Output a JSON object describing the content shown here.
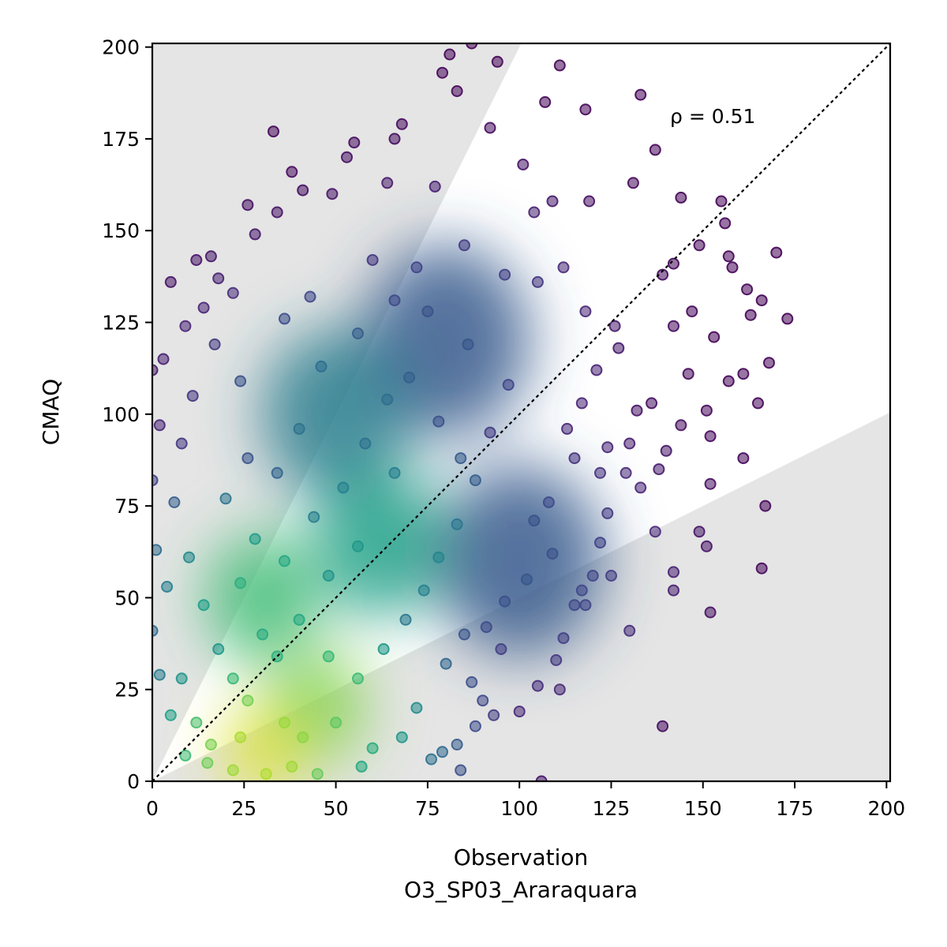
{
  "chart_data": {
    "type": "scatter",
    "title": "",
    "xlabel": "Observation\nO3_SP03_Araraquara",
    "xlabel_lines": [
      "Observation",
      "O3_SP03_Araraquara"
    ],
    "ylabel": "CMAQ",
    "xlim": [
      0,
      201
    ],
    "ylim": [
      0,
      201
    ],
    "x_ticks": [
      0,
      25,
      50,
      75,
      100,
      125,
      150,
      175,
      200
    ],
    "y_ticks": [
      0,
      25,
      50,
      75,
      100,
      125,
      150,
      175,
      200
    ],
    "x_tick_labels": [
      "0",
      "25",
      "50",
      "75",
      "100",
      "125",
      "150",
      "175",
      "200"
    ],
    "y_tick_labels": [
      "0",
      "25",
      "50",
      "75",
      "100",
      "125",
      "150",
      "175",
      "200"
    ],
    "annotation": "ρ = 0.51",
    "reference_line": {
      "type": "1:1",
      "style": "dotted",
      "color": "#000000"
    },
    "factor_of_two_bands": {
      "upper_slope": 2,
      "lower_slope": 0.5,
      "fill_color": "#e5e5e5"
    },
    "colormap": "viridis (point density)",
    "grid": false,
    "legend": "none",
    "density_clusters": [
      {
        "x": 30,
        "y": 8,
        "density": 1.0
      },
      {
        "x": 45,
        "y": 20,
        "density": 0.85
      },
      {
        "x": 30,
        "y": 50,
        "density": 0.72
      },
      {
        "x": 62,
        "y": 65,
        "density": 0.6
      },
      {
        "x": 50,
        "y": 100,
        "density": 0.45
      },
      {
        "x": 80,
        "y": 120,
        "density": 0.3
      },
      {
        "x": 100,
        "y": 60,
        "density": 0.3
      }
    ],
    "sample_points": [
      [
        87,
        201
      ],
      [
        81,
        198
      ],
      [
        94,
        196
      ],
      [
        111,
        195
      ],
      [
        79,
        193
      ],
      [
        83,
        188
      ],
      [
        133,
        187
      ],
      [
        107,
        185
      ],
      [
        118,
        183
      ],
      [
        33,
        177
      ],
      [
        137,
        172
      ],
      [
        55,
        174
      ],
      [
        68,
        179
      ],
      [
        92,
        178
      ],
      [
        101,
        168
      ],
      [
        38,
        166
      ],
      [
        53,
        170
      ],
      [
        66,
        175
      ],
      [
        131,
        163
      ],
      [
        144,
        159
      ],
      [
        155,
        158
      ],
      [
        26,
        157
      ],
      [
        34,
        155
      ],
      [
        41,
        161
      ],
      [
        49,
        160
      ],
      [
        64,
        163
      ],
      [
        77,
        162
      ],
      [
        119,
        158
      ],
      [
        109,
        158
      ],
      [
        104,
        155
      ],
      [
        156,
        152
      ],
      [
        28,
        149
      ],
      [
        12,
        142
      ],
      [
        16,
        143
      ],
      [
        5,
        136
      ],
      [
        157,
        143
      ],
      [
        170,
        144
      ],
      [
        173,
        126
      ],
      [
        163,
        127
      ],
      [
        149,
        146
      ],
      [
        142,
        141
      ],
      [
        139,
        138
      ],
      [
        158,
        140
      ],
      [
        162,
        134
      ],
      [
        166,
        131
      ],
      [
        147,
        128
      ],
      [
        142,
        124
      ],
      [
        153,
        121
      ],
      [
        157,
        109
      ],
      [
        168,
        114
      ],
      [
        165,
        103
      ],
      [
        161,
        111
      ],
      [
        146,
        111
      ],
      [
        151,
        101
      ],
      [
        136,
        103
      ],
      [
        132,
        101
      ],
      [
        144,
        97
      ],
      [
        152,
        94
      ],
      [
        161,
        88
      ],
      [
        140,
        90
      ],
      [
        138,
        85
      ],
      [
        152,
        81
      ],
      [
        133,
        80
      ],
      [
        167,
        75
      ],
      [
        129,
        84
      ],
      [
        124,
        91
      ],
      [
        122,
        84
      ],
      [
        130,
        92
      ],
      [
        124,
        73
      ],
      [
        137,
        68
      ],
      [
        122,
        65
      ],
      [
        125,
        56
      ],
      [
        149,
        68
      ],
      [
        151,
        64
      ],
      [
        142,
        57
      ],
      [
        142,
        52
      ],
      [
        166,
        58
      ],
      [
        152,
        46
      ],
      [
        130,
        41
      ],
      [
        120,
        56
      ],
      [
        115,
        48
      ],
      [
        118,
        48
      ],
      [
        117,
        52
      ],
      [
        110,
        33
      ],
      [
        111,
        25
      ],
      [
        112,
        39
      ],
      [
        105,
        26
      ],
      [
        100,
        19
      ],
      [
        93,
        18
      ],
      [
        88,
        15
      ],
      [
        83,
        10
      ],
      [
        79,
        8
      ],
      [
        76,
        6
      ],
      [
        106,
        0
      ],
      [
        84,
        3
      ],
      [
        139,
        15
      ],
      [
        3,
        115
      ],
      [
        0,
        112
      ],
      [
        2,
        97
      ],
      [
        0,
        82
      ],
      [
        1,
        63
      ],
      [
        4,
        53
      ],
      [
        0,
        41
      ],
      [
        2,
        29
      ],
      [
        5,
        18
      ],
      [
        9,
        124
      ],
      [
        14,
        129
      ],
      [
        17,
        119
      ],
      [
        22,
        133
      ],
      [
        18,
        137
      ],
      [
        24,
        109
      ],
      [
        11,
        105
      ],
      [
        8,
        92
      ],
      [
        6,
        76
      ],
      [
        10,
        61
      ],
      [
        14,
        48
      ],
      [
        18,
        36
      ],
      [
        22,
        28
      ],
      [
        8,
        28
      ],
      [
        12,
        16
      ],
      [
        20,
        77
      ],
      [
        26,
        88
      ],
      [
        36,
        126
      ],
      [
        43,
        132
      ],
      [
        60,
        142
      ],
      [
        72,
        140
      ],
      [
        85,
        146
      ],
      [
        96,
        138
      ],
      [
        105,
        136
      ],
      [
        112,
        140
      ],
      [
        118,
        128
      ],
      [
        126,
        124
      ],
      [
        127,
        118
      ],
      [
        121,
        112
      ],
      [
        117,
        103
      ],
      [
        113,
        96
      ],
      [
        115,
        88
      ],
      [
        108,
        76
      ],
      [
        104,
        71
      ],
      [
        109,
        62
      ],
      [
        102,
        55
      ],
      [
        96,
        49
      ],
      [
        91,
        42
      ],
      [
        95,
        36
      ],
      [
        85,
        40
      ],
      [
        80,
        32
      ],
      [
        87,
        27
      ],
      [
        90,
        22
      ],
      [
        72,
        20
      ],
      [
        68,
        12
      ],
      [
        60,
        9
      ],
      [
        57,
        4
      ],
      [
        45,
        2
      ],
      [
        38,
        4
      ],
      [
        31,
        2
      ],
      [
        22,
        3
      ],
      [
        15,
        5
      ],
      [
        9,
        7
      ],
      [
        41,
        12
      ],
      [
        50,
        16
      ],
      [
        56,
        28
      ],
      [
        63,
        36
      ],
      [
        69,
        44
      ],
      [
        74,
        52
      ],
      [
        78,
        61
      ],
      [
        83,
        70
      ],
      [
        88,
        82
      ],
      [
        92,
        95
      ],
      [
        97,
        108
      ],
      [
        86,
        119
      ],
      [
        75,
        128
      ],
      [
        66,
        131
      ],
      [
        56,
        122
      ],
      [
        46,
        113
      ],
      [
        40,
        96
      ],
      [
        34,
        84
      ],
      [
        28,
        66
      ],
      [
        24,
        54
      ],
      [
        36,
        60
      ],
      [
        44,
        72
      ],
      [
        52,
        80
      ],
      [
        58,
        92
      ],
      [
        64,
        104
      ],
      [
        70,
        110
      ],
      [
        78,
        98
      ],
      [
        84,
        88
      ],
      [
        66,
        84
      ],
      [
        56,
        64
      ],
      [
        48,
        56
      ],
      [
        40,
        44
      ],
      [
        48,
        34
      ],
      [
        34,
        34
      ],
      [
        26,
        22
      ],
      [
        36,
        16
      ],
      [
        24,
        12
      ],
      [
        16,
        10
      ],
      [
        30,
        40
      ]
    ]
  }
}
